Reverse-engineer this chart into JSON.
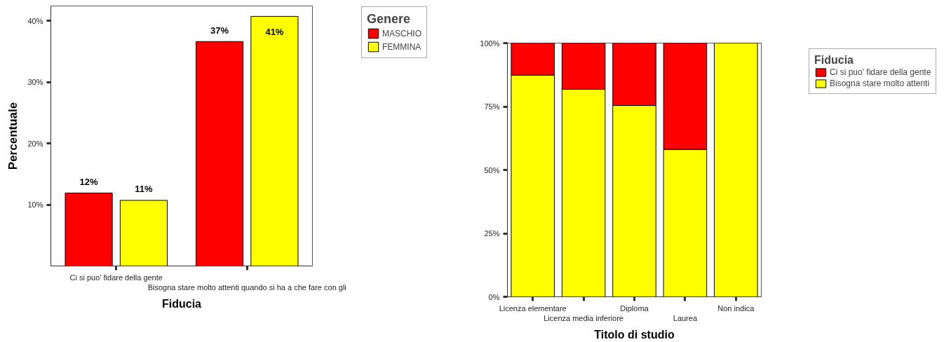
{
  "chart_data": [
    {
      "type": "bar",
      "categories": [
        "Ci si puo' fidare della gente",
        "Bisogna stare molto attenti quando si ha a che fare con gli"
      ],
      "xlabel": "Fiducia",
      "ylabel": "Percentuale",
      "legend_title": "Genere",
      "legend": "top right",
      "series": [
        {
          "name": "MASCHIO",
          "color": "#ff0000",
          "values": [
            11.9,
            36.6
          ],
          "value_labels": [
            "12%",
            "37%"
          ]
        },
        {
          "name": "FEMMINA",
          "color": "#ffff00",
          "values": [
            10.7,
            40.7
          ],
          "value_labels": [
            "11%",
            "41%"
          ]
        }
      ],
      "ylim": [
        0,
        42.4
      ],
      "yticks": [
        {
          "value": 10,
          "label": "10%"
        },
        {
          "value": 20,
          "label": "20%"
        },
        {
          "value": 30,
          "label": "30%"
        },
        {
          "value": 40,
          "label": "40%"
        }
      ]
    },
    {
      "type": "bar",
      "stacked": true,
      "categories": [
        "Licenza elementare",
        "Licenza media inferiore",
        "Diploma",
        "Laurea",
        "Non indica"
      ],
      "xlabel": "Titolo di studio",
      "legend_title": "Fiducia",
      "legend": "top right",
      "series": [
        {
          "name": "Bisogna stare molto attenti",
          "color": "#ffff00",
          "values": [
            87.4,
            81.8,
            75.4,
            58.1,
            100
          ]
        },
        {
          "name": "Ci si puo' fidare della gente",
          "color": "#ff0000",
          "values": [
            12.6,
            18.2,
            24.6,
            41.9,
            0
          ]
        }
      ],
      "ylim": [
        0,
        100
      ],
      "yticks": [
        {
          "value": 0,
          "label": "0%"
        },
        {
          "value": 25,
          "label": "25%"
        },
        {
          "value": 50,
          "label": "50%"
        },
        {
          "value": 75,
          "label": "75%"
        },
        {
          "value": 100,
          "label": "100%"
        }
      ]
    }
  ]
}
